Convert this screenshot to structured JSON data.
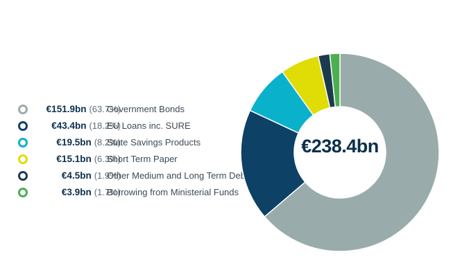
{
  "chart_data": {
    "type": "pie",
    "donut": true,
    "total_label": "€238.4bn",
    "legend_position": "left",
    "slices": [
      {
        "amount": "€151.9bn",
        "percent_label": "(63.7%)",
        "label": "Government Bonds",
        "value": 151.9,
        "percent": 63.7,
        "color": "#9aabab"
      },
      {
        "amount": "€43.4bn",
        "percent_label": "(18.2%)",
        "label": "EU Loans inc. SURE",
        "value": 43.4,
        "percent": 18.2,
        "color": "#0e4166"
      },
      {
        "amount": "€19.5bn",
        "percent_label": "(8.2%)",
        "label": "State Savings Products",
        "value": 19.5,
        "percent": 8.2,
        "color": "#0ab1cb"
      },
      {
        "amount": "€15.1bn",
        "percent_label": "(6.3%)",
        "label": "Short Term Paper",
        "value": 15.1,
        "percent": 6.3,
        "color": "#e0dc06"
      },
      {
        "amount": "€4.5bn",
        "percent_label": "(1.9%)",
        "label": "Other Medium and Long Term Debt",
        "value": 4.5,
        "percent": 1.9,
        "color": "#1c3b4e"
      },
      {
        "amount": "€3.9bn",
        "percent_label": "(1.7%)",
        "label": "Borrowing from Ministerial Funds",
        "value": 3.9,
        "percent": 1.7,
        "color": "#4caf50"
      }
    ]
  }
}
